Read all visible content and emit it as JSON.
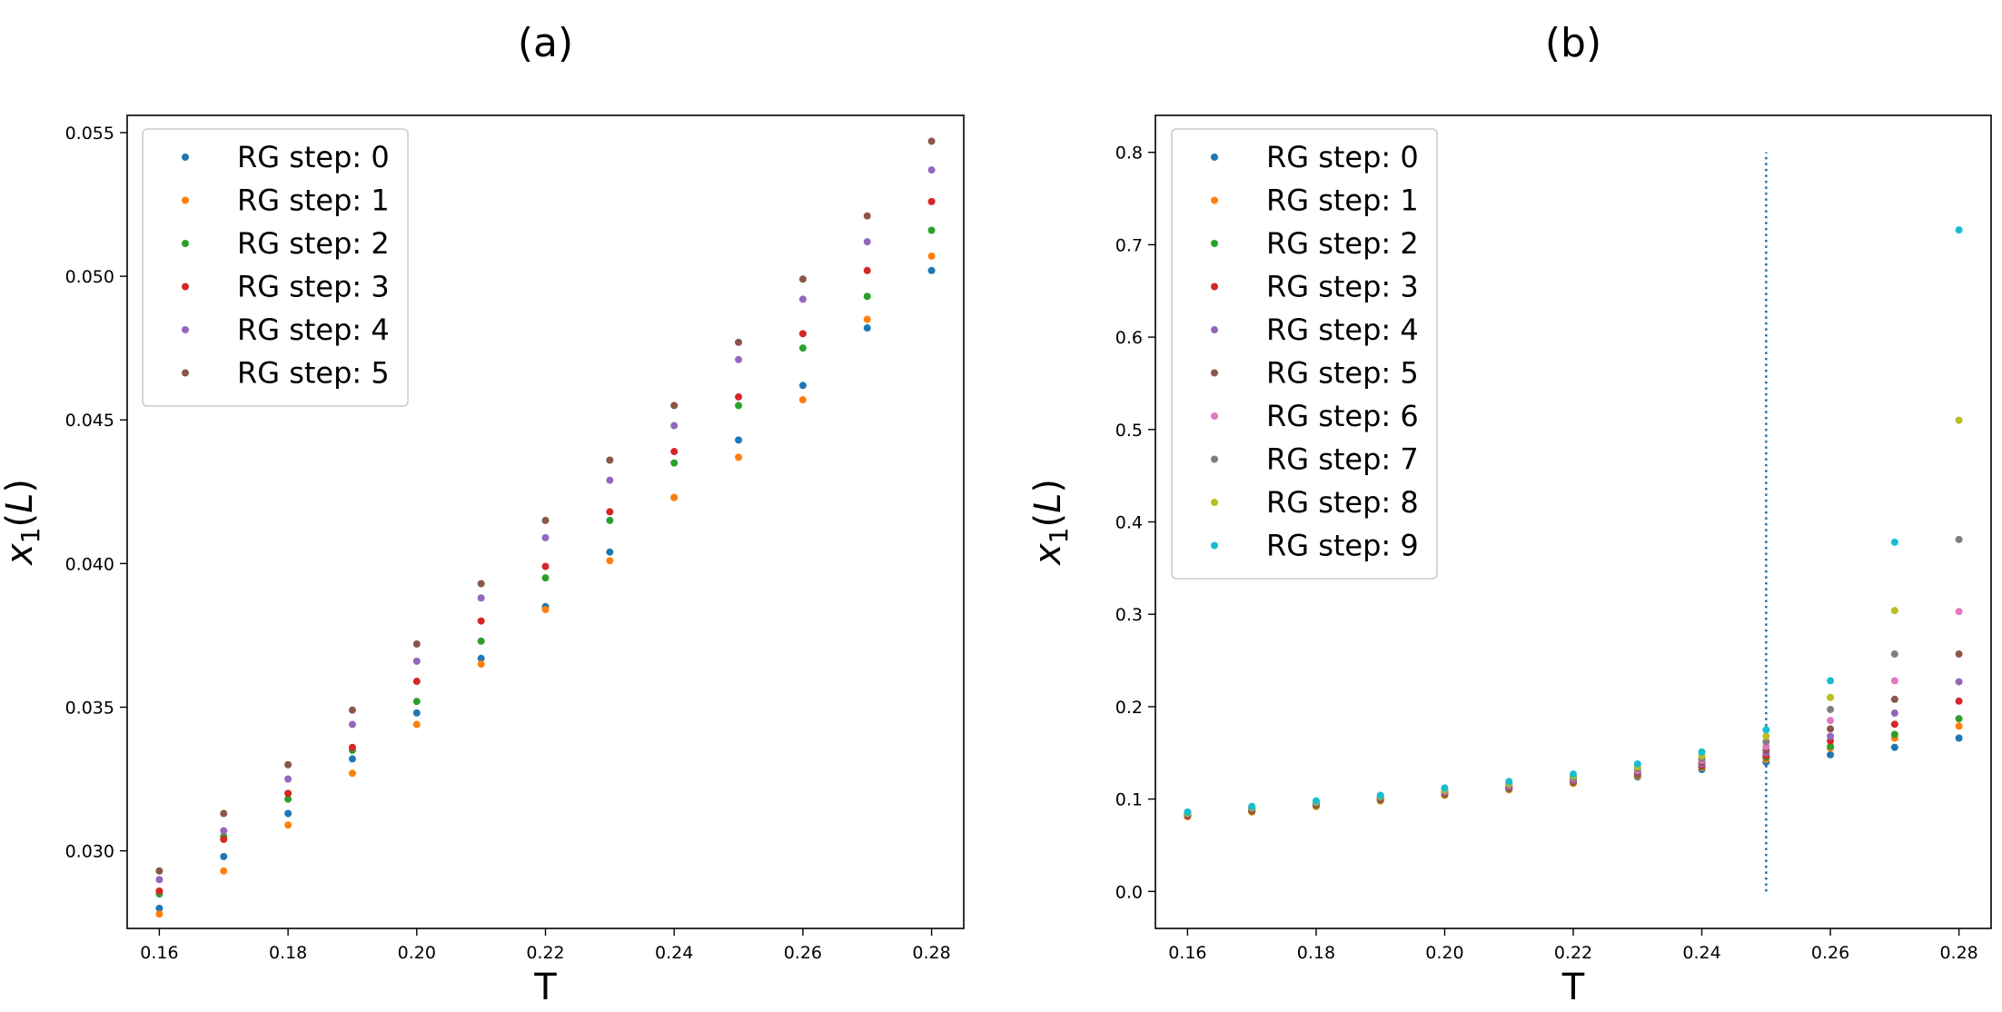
{
  "chart_data": [
    {
      "panel_label": "(a)",
      "type": "scatter",
      "xlabel": "T",
      "ylabel": "x1(L)",
      "ylabel_base": "x",
      "ylabel_sub": "1",
      "ylabel_suffix": "(L)",
      "xlim": [
        0.155,
        0.285
      ],
      "ylim": [
        0.0273,
        0.0556
      ],
      "xticks": [
        0.16,
        0.18,
        0.2,
        0.22,
        0.24,
        0.26,
        0.28
      ],
      "xtick_labels": [
        "0.16",
        "0.18",
        "0.20",
        "0.22",
        "0.24",
        "0.26",
        "0.28"
      ],
      "yticks": [
        0.03,
        0.035,
        0.04,
        0.045,
        0.05,
        0.055
      ],
      "ytick_labels": [
        "0.030",
        "0.035",
        "0.040",
        "0.045",
        "0.050",
        "0.055"
      ],
      "grid": false,
      "legend_position": "upper-left",
      "x": [
        0.16,
        0.17,
        0.18,
        0.19,
        0.2,
        0.21,
        0.22,
        0.23,
        0.24,
        0.25,
        0.26,
        0.27,
        0.28
      ],
      "series": [
        {
          "name": "RG step: 0",
          "color": "#1f77b4",
          "values": [
            0.028,
            0.0298,
            0.0313,
            0.0332,
            0.0348,
            0.0367,
            0.0385,
            0.0404,
            0.0423,
            0.0443,
            0.0462,
            0.0482,
            0.0502
          ]
        },
        {
          "name": "RG step: 1",
          "color": "#ff7f0e",
          "values": [
            0.0278,
            0.0293,
            0.0309,
            0.0327,
            0.0344,
            0.0365,
            0.0384,
            0.0401,
            0.0423,
            0.0437,
            0.0457,
            0.0485,
            0.0507
          ]
        },
        {
          "name": "RG step: 2",
          "color": "#2ca02c",
          "values": [
            0.0285,
            0.0305,
            0.0318,
            0.0335,
            0.0352,
            0.0373,
            0.0395,
            0.0415,
            0.0435,
            0.0455,
            0.0475,
            0.0493,
            0.0516
          ]
        },
        {
          "name": "RG step: 3",
          "color": "#d62728",
          "values": [
            0.0286,
            0.0304,
            0.032,
            0.0336,
            0.0359,
            0.038,
            0.0399,
            0.0418,
            0.0439,
            0.0458,
            0.048,
            0.0502,
            0.0526
          ]
        },
        {
          "name": "RG step: 4",
          "color": "#9467bd",
          "values": [
            0.029,
            0.0307,
            0.0325,
            0.0344,
            0.0366,
            0.0388,
            0.0409,
            0.0429,
            0.0448,
            0.0471,
            0.0492,
            0.0512,
            0.0537
          ]
        },
        {
          "name": "RG step: 5",
          "color": "#8c564b",
          "values": [
            0.0293,
            0.0313,
            0.033,
            0.0349,
            0.0372,
            0.0393,
            0.0415,
            0.0436,
            0.0455,
            0.0477,
            0.0499,
            0.0521,
            0.0547
          ]
        }
      ]
    },
    {
      "panel_label": "(b)",
      "type": "scatter",
      "xlabel": "T",
      "ylabel": "x1(L)",
      "ylabel_base": "x",
      "ylabel_sub": "1",
      "ylabel_suffix": "(L)",
      "xlim": [
        0.155,
        0.285
      ],
      "ylim": [
        -0.04,
        0.84
      ],
      "xticks": [
        0.16,
        0.18,
        0.2,
        0.22,
        0.24,
        0.26,
        0.28
      ],
      "xtick_labels": [
        "0.16",
        "0.18",
        "0.20",
        "0.22",
        "0.24",
        "0.26",
        "0.28"
      ],
      "yticks": [
        0.0,
        0.1,
        0.2,
        0.3,
        0.4,
        0.5,
        0.6,
        0.7,
        0.8
      ],
      "ytick_labels": [
        "0.0",
        "0.1",
        "0.2",
        "0.3",
        "0.4",
        "0.5",
        "0.6",
        "0.7",
        "0.8"
      ],
      "grid": false,
      "legend_position": "upper-left",
      "vline": {
        "x": 0.25,
        "ymin": 0.0,
        "ymax": 0.8,
        "style": "dotted",
        "color": "#1f77b4"
      },
      "x": [
        0.16,
        0.17,
        0.18,
        0.19,
        0.2,
        0.21,
        0.22,
        0.23,
        0.24,
        0.25,
        0.26,
        0.27,
        0.28
      ],
      "series": [
        {
          "name": "RG step: 0",
          "color": "#1f77b4",
          "values": [
            0.082,
            0.087,
            0.093,
            0.099,
            0.105,
            0.111,
            0.118,
            0.124,
            0.132,
            0.14,
            0.148,
            0.156,
            0.166
          ]
        },
        {
          "name": "RG step: 1",
          "color": "#ff7f0e",
          "values": [
            0.081,
            0.086,
            0.092,
            0.098,
            0.104,
            0.11,
            0.117,
            0.125,
            0.134,
            0.143,
            0.155,
            0.166,
            0.179
          ]
        },
        {
          "name": "RG step: 2",
          "color": "#2ca02c",
          "values": [
            0.082,
            0.087,
            0.093,
            0.099,
            0.105,
            0.111,
            0.118,
            0.126,
            0.135,
            0.145,
            0.157,
            0.17,
            0.187
          ]
        },
        {
          "name": "RG step: 3",
          "color": "#d62728",
          "values": [
            0.082,
            0.088,
            0.094,
            0.1,
            0.106,
            0.112,
            0.119,
            0.127,
            0.136,
            0.147,
            0.163,
            0.181,
            0.206
          ]
        },
        {
          "name": "RG step: 4",
          "color": "#9467bd",
          "values": [
            0.083,
            0.089,
            0.095,
            0.101,
            0.107,
            0.113,
            0.12,
            0.128,
            0.138,
            0.15,
            0.168,
            0.193,
            0.227
          ]
        },
        {
          "name": "RG step: 5",
          "color": "#8c564b",
          "values": [
            0.083,
            0.089,
            0.095,
            0.101,
            0.107,
            0.114,
            0.121,
            0.129,
            0.14,
            0.153,
            0.176,
            0.208,
            0.257
          ]
        },
        {
          "name": "RG step: 6",
          "color": "#e377c2",
          "values": [
            0.084,
            0.09,
            0.096,
            0.102,
            0.108,
            0.115,
            0.122,
            0.131,
            0.142,
            0.157,
            0.185,
            0.228,
            0.303
          ]
        },
        {
          "name": "RG step: 7",
          "color": "#7f7f7f",
          "values": [
            0.084,
            0.09,
            0.096,
            0.102,
            0.109,
            0.116,
            0.123,
            0.133,
            0.144,
            0.162,
            0.197,
            0.257,
            0.381
          ]
        },
        {
          "name": "RG step: 8",
          "color": "#bcbd22",
          "values": [
            0.085,
            0.091,
            0.097,
            0.103,
            0.11,
            0.117,
            0.125,
            0.135,
            0.147,
            0.168,
            0.21,
            0.304,
            0.51
          ]
        },
        {
          "name": "RG step: 9",
          "color": "#17becf",
          "values": [
            0.086,
            0.092,
            0.098,
            0.104,
            0.112,
            0.119,
            0.127,
            0.138,
            0.151,
            0.175,
            0.228,
            0.378,
            0.716
          ]
        }
      ]
    }
  ]
}
